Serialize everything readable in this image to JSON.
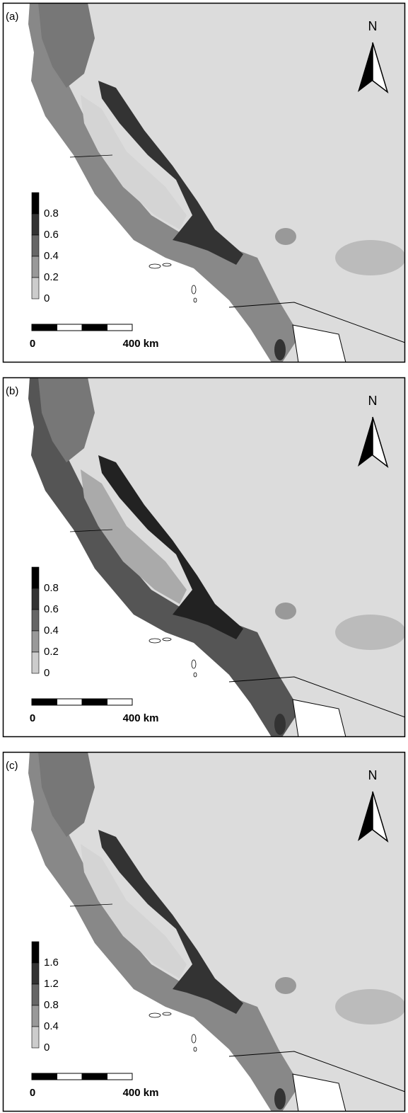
{
  "panels": [
    {
      "label": "(a)",
      "north": "N",
      "legend": {
        "labels": [
          "0.8",
          "0.6",
          "0.4",
          "0.2",
          "0"
        ]
      },
      "scale_bar": {
        "start": "0",
        "end": "400 km"
      }
    },
    {
      "label": "(b)",
      "north": "N",
      "legend": {
        "labels": [
          "0.8",
          "0.6",
          "0.4",
          "0.2",
          "0"
        ]
      },
      "scale_bar": {
        "start": "0",
        "end": "400 km"
      }
    },
    {
      "label": "(c)",
      "north": "N",
      "legend": {
        "labels": [
          "1.6",
          "1.2",
          "0.8",
          "0.4",
          "0"
        ]
      },
      "scale_bar": {
        "start": "0",
        "end": "400 km"
      }
    }
  ]
}
